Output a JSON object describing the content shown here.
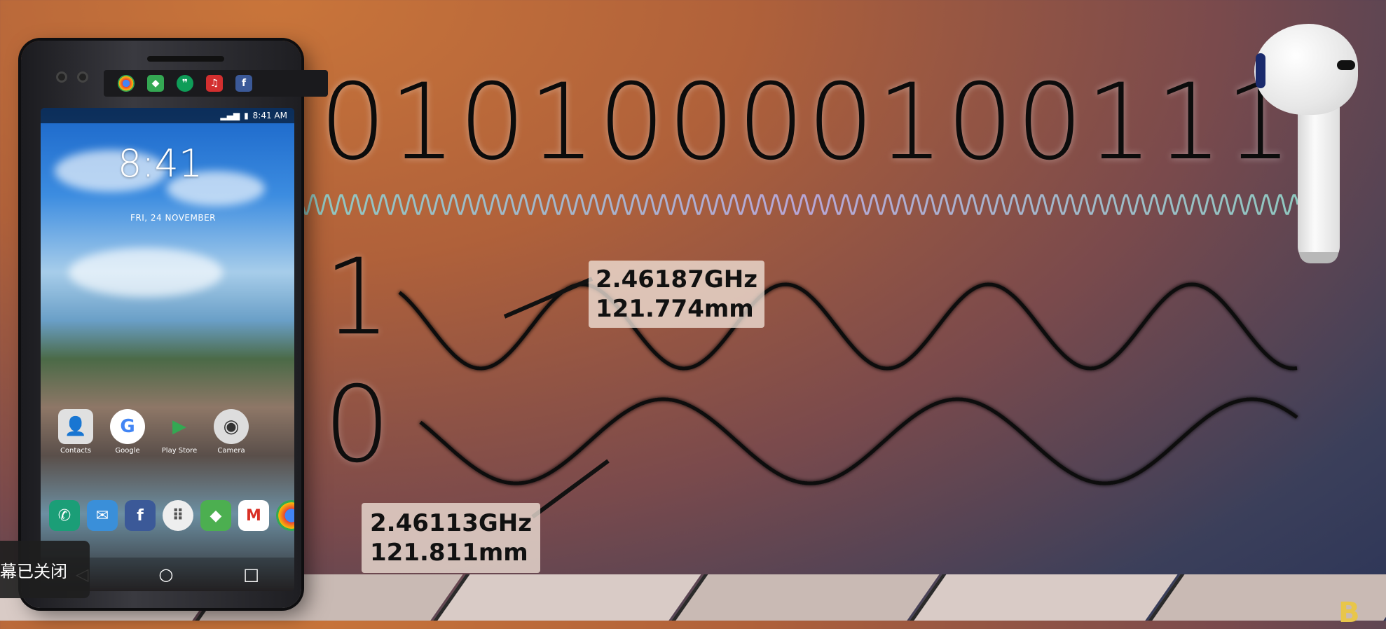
{
  "binary_string": "010100001001110",
  "bit_labels": {
    "one": "1",
    "zero": "0"
  },
  "wave_one": {
    "frequency": "2.46187GHz",
    "wavelength": "121.774mm"
  },
  "wave_zero": {
    "frequency": "2.46113GHz",
    "wavelength": "121.811mm"
  },
  "phone": {
    "lock_time": "8:41",
    "lock_date": "FRI, 24 NOVEMBER",
    "status_time": "8:41 AM",
    "apps": [
      {
        "label": "Contacts",
        "icon": "contacts-icon"
      },
      {
        "label": "Google",
        "icon": "google-icon"
      },
      {
        "label": "Play Store",
        "icon": "play-store-icon"
      },
      {
        "label": "Camera",
        "icon": "camera-icon"
      }
    ],
    "dock": [
      {
        "icon": "phone-icon"
      },
      {
        "icon": "messages-icon"
      },
      {
        "icon": "facebook-icon"
      },
      {
        "icon": "app-drawer-icon"
      },
      {
        "icon": "maps-icon"
      },
      {
        "icon": "gmail-icon"
      },
      {
        "icon": "chrome-icon"
      }
    ],
    "nav": {
      "back": "◁",
      "home": "○",
      "recents": "□"
    }
  },
  "toast_text": "幕已关闭",
  "corner_letter": "B",
  "colors": {
    "wave_line": "#0c0c0c",
    "carrier_wave": "#8fc8c0"
  }
}
